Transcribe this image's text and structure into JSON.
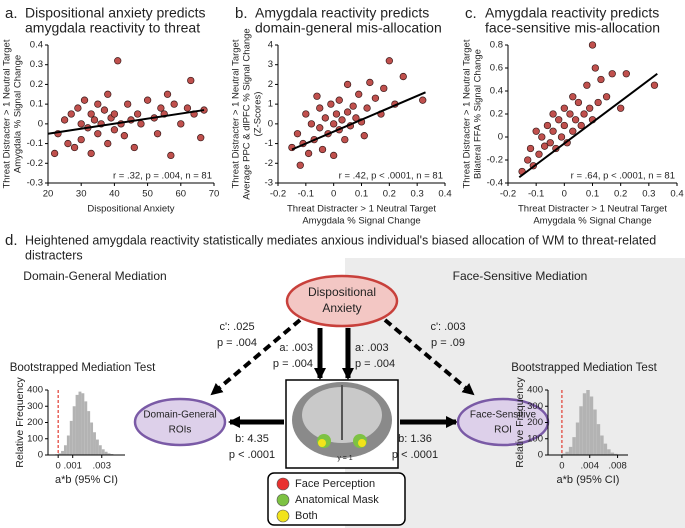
{
  "chart_data": [
    {
      "type": "scatter",
      "panel": "a.",
      "title": [
        "Dispositional anxiety predicts",
        "amygdala reactivity to threat"
      ],
      "ylabel": [
        "Threat Distracter > 1 Neutral Target",
        "Amygdala % Signal Change"
      ],
      "xlabel": [
        "Dispositional Anxiety"
      ],
      "annotation": "r = .32, p = .004, n = 81",
      "color": "#c0504d",
      "xlim": [
        20,
        70
      ],
      "xticks": [
        20,
        30,
        40,
        50,
        60,
        70
      ],
      "ylim": [
        -0.3,
        0.4
      ],
      "yticks": [
        -0.3,
        -0.2,
        -0.1,
        0,
        0.1,
        0.2,
        0.3,
        0.4
      ],
      "x": [
        22,
        23,
        25,
        26,
        27,
        28,
        29,
        30,
        30,
        31,
        32,
        33,
        33,
        34,
        35,
        35,
        36,
        37,
        38,
        38,
        39,
        40,
        40,
        41,
        42,
        43,
        44,
        45,
        46,
        47,
        48,
        50,
        52,
        53,
        54,
        55,
        56,
        57,
        58,
        60,
        62,
        63,
        64,
        66,
        67
      ],
      "y": [
        -0.15,
        -0.05,
        0.02,
        -0.1,
        0.05,
        -0.12,
        0.08,
        0,
        -0.08,
        0.12,
        -0.02,
        0.05,
        -0.15,
        0.02,
        0.1,
        -0.05,
        0,
        0.07,
        -0.1,
        0.15,
        0.03,
        -0.03,
        0.05,
        0.32,
        0,
        -0.06,
        0.1,
        0.02,
        -0.12,
        0.05,
        0,
        0.12,
        0.03,
        -0.05,
        0.08,
        0.05,
        0.15,
        -0.16,
        0.1,
        0,
        0.08,
        0.22,
        0.05,
        -0.07,
        0.07
      ],
      "fit": {
        "x": [
          20,
          67
        ],
        "y": [
          -0.05,
          0.07
        ]
      }
    },
    {
      "type": "scatter",
      "panel": "b.",
      "title": [
        "Amygdala reactivity predicts",
        "domain-general mis-allocation"
      ],
      "ylabel": [
        "Threat Distracter > 1 Neutral Target",
        "Average PPC & dlPFC % Signal Change",
        "(Z-Scores)"
      ],
      "xlabel": [
        "Threat Distracter > 1 Neutral Target",
        "Amygdala % Signal Change"
      ],
      "annotation": "r = .42, p < .0001, n = 81",
      "color": "#c0504d",
      "xlim": [
        -0.2,
        0.4
      ],
      "xticks": [
        -0.2,
        -0.1,
        0,
        0.1,
        0.2,
        0.3,
        0.4
      ],
      "ylim": [
        -3,
        4
      ],
      "yticks": [
        -3,
        -2,
        -1,
        0,
        1,
        2,
        3,
        4
      ],
      "x": [
        -0.15,
        -0.13,
        -0.12,
        -0.11,
        -0.1,
        -0.09,
        -0.08,
        -0.07,
        -0.06,
        -0.05,
        -0.05,
        -0.04,
        -0.03,
        -0.02,
        -0.01,
        0,
        0,
        0.01,
        0.02,
        0.02,
        0.03,
        0.04,
        0.05,
        0.05,
        0.06,
        0.07,
        0.08,
        0.09,
        0.1,
        0.11,
        0.12,
        0.13,
        0.15,
        0.17,
        0.18,
        0.2,
        0.22,
        0.25,
        0.32
      ],
      "y": [
        -1.2,
        -0.5,
        -2.1,
        -1,
        0.5,
        -1.5,
        0,
        -0.8,
        1.4,
        -0.2,
        0.8,
        -1.3,
        0.3,
        -0.5,
        1,
        0,
        -1.6,
        0.5,
        -0.3,
        1.2,
        0.2,
        -0.8,
        0.6,
        2,
        -0.1,
        0.9,
        0.3,
        1.5,
        0.1,
        -0.6,
        0.8,
        2.1,
        1.3,
        0.5,
        1.8,
        3.2,
        1,
        2.4,
        1.2
      ],
      "fit": {
        "x": [
          -0.15,
          0.33
        ],
        "y": [
          -1.3,
          1.6
        ]
      }
    },
    {
      "type": "scatter",
      "panel": "c.",
      "title": [
        "Amygdala reactivity predicts",
        "face-sensitive mis-allocation"
      ],
      "ylabel": [
        "Threat Distracter > 1 Neutral Target",
        "Bilateral FFA % Signal Change"
      ],
      "xlabel": [
        "Threat Distracter > 1 Neutral Target",
        "Amygdala % Signal Change"
      ],
      "annotation": "r = .64, p < .0001, n = 81",
      "color": "#c0504d",
      "xlim": [
        -0.2,
        0.4
      ],
      "xticks": [
        -0.2,
        -0.1,
        0,
        0.1,
        0.2,
        0.3,
        0.4
      ],
      "ylim": [
        -0.4,
        0.8
      ],
      "yticks": [
        -0.4,
        -0.2,
        0,
        0.2,
        0.4,
        0.6,
        0.8
      ],
      "x": [
        -0.15,
        -0.13,
        -0.12,
        -0.11,
        -0.1,
        -0.09,
        -0.08,
        -0.07,
        -0.06,
        -0.05,
        -0.04,
        -0.04,
        -0.03,
        -0.02,
        -0.01,
        0,
        0,
        0.01,
        0.02,
        0.03,
        0.03,
        0.04,
        0.05,
        0.06,
        0.07,
        0.08,
        0.09,
        0.1,
        0.1,
        0.11,
        0.12,
        0.13,
        0.15,
        0.17,
        0.2,
        0.22,
        0.32
      ],
      "y": [
        -0.3,
        -0.2,
        -0.1,
        -0.25,
        0.05,
        -0.15,
        0,
        -0.08,
        0.1,
        -0.05,
        0.2,
        0.05,
        -0.1,
        0.15,
        0,
        0.1,
        0.25,
        -0.05,
        0.2,
        0.05,
        0.35,
        0.15,
        0.3,
        0.1,
        0.2,
        0.45,
        0.25,
        0.8,
        0.15,
        0.6,
        0.3,
        0.5,
        0.35,
        0.55,
        0.25,
        0.55,
        0.45
      ],
      "fit": {
        "x": [
          -0.16,
          0.33
        ],
        "y": [
          -0.35,
          0.55
        ]
      }
    },
    {
      "type": "histogram",
      "title": "Bootstrapped Mediation Test",
      "ylabel": "Relative Frequency",
      "xlabel": "a*b (95% CI)",
      "color": "#b3b3b3",
      "vline": 0,
      "vline_color": "#e03c31",
      "xlim": [
        -0.0007,
        0.0046
      ],
      "xticks": [
        {
          "value": 0,
          "label": "0"
        },
        {
          "value": 0.001,
          "label": ".001"
        },
        {
          "value": 0.003,
          "label": ".003"
        }
      ],
      "ylim": [
        0,
        400
      ],
      "yticks": [
        0,
        100,
        200,
        300,
        400
      ],
      "bins": [
        -0.0004,
        -0.0002,
        0,
        0.0002,
        0.0004,
        0.0006,
        0.0008,
        0.001,
        0.0012,
        0.0014,
        0.0016,
        0.0018,
        0.002,
        0.0022,
        0.0024,
        0.0026,
        0.0028,
        0.003,
        0.0032,
        0.0034,
        0.0036,
        0.0038,
        0.004,
        0.0042,
        0.0044
      ],
      "counts": [
        2,
        5,
        10,
        25,
        60,
        120,
        210,
        300,
        370,
        390,
        380,
        330,
        270,
        200,
        140,
        95,
        60,
        35,
        20,
        10,
        6,
        3,
        2,
        1
      ]
    },
    {
      "type": "histogram",
      "title": "Bootstrapped Mediation Test",
      "ylabel": "Relative Frequency",
      "xlabel": "a*b (95% CI)",
      "color": "#b3b3b3",
      "vline": 0,
      "vline_color": "#e03c31",
      "xlim": [
        -0.002,
        0.0095
      ],
      "xticks": [
        {
          "value": 0,
          "label": "0"
        },
        {
          "value": 0.004,
          "label": ".004"
        },
        {
          "value": 0.008,
          "label": ".008"
        }
      ],
      "ylim": [
        0,
        400
      ],
      "yticks": [
        0,
        100,
        200,
        300,
        400
      ],
      "bins": [
        -0.001,
        -0.0005,
        0,
        0.0005,
        0.001,
        0.0015,
        0.002,
        0.0025,
        0.003,
        0.0035,
        0.004,
        0.0045,
        0.005,
        0.0055,
        0.006,
        0.0065,
        0.007,
        0.0075,
        0.008,
        0.0085,
        0.009
      ],
      "counts": [
        1,
        3,
        8,
        20,
        50,
        110,
        200,
        300,
        380,
        400,
        360,
        280,
        190,
        120,
        70,
        35,
        15,
        7,
        3,
        1
      ]
    }
  ],
  "diagram": {
    "panel": "d.",
    "title": [
      "Heightened amygdala reactivity statistically mediates anxious individual's biased allocation of WM to threat-related",
      "distracters"
    ],
    "left_heading": "Domain-General Mediation",
    "right_heading": "Face-Sensitive Mediation",
    "nodes": [
      [
        "Dispositional",
        "Anxiety"
      ],
      [
        "Domain-General",
        "ROIs"
      ],
      [
        "Face-Sensitive",
        "ROI"
      ]
    ],
    "paths": [
      [
        "c': .025",
        "p = .004"
      ],
      [
        "a: .003",
        "p = .004"
      ],
      [
        "a: .003",
        "p = .004"
      ],
      [
        "c': .003",
        "p = .09"
      ],
      [
        "b: 4.35",
        "p < .0001"
      ],
      [
        "b: 1.36",
        "p < .0001"
      ]
    ],
    "brain_label": "y = 1",
    "legend": [
      {
        "name": "Face Perception",
        "color": "#e8312f"
      },
      {
        "name": "Anatomical Mask",
        "color": "#7dc243"
      },
      {
        "name": "Both",
        "color": "#f2e31b"
      }
    ]
  }
}
